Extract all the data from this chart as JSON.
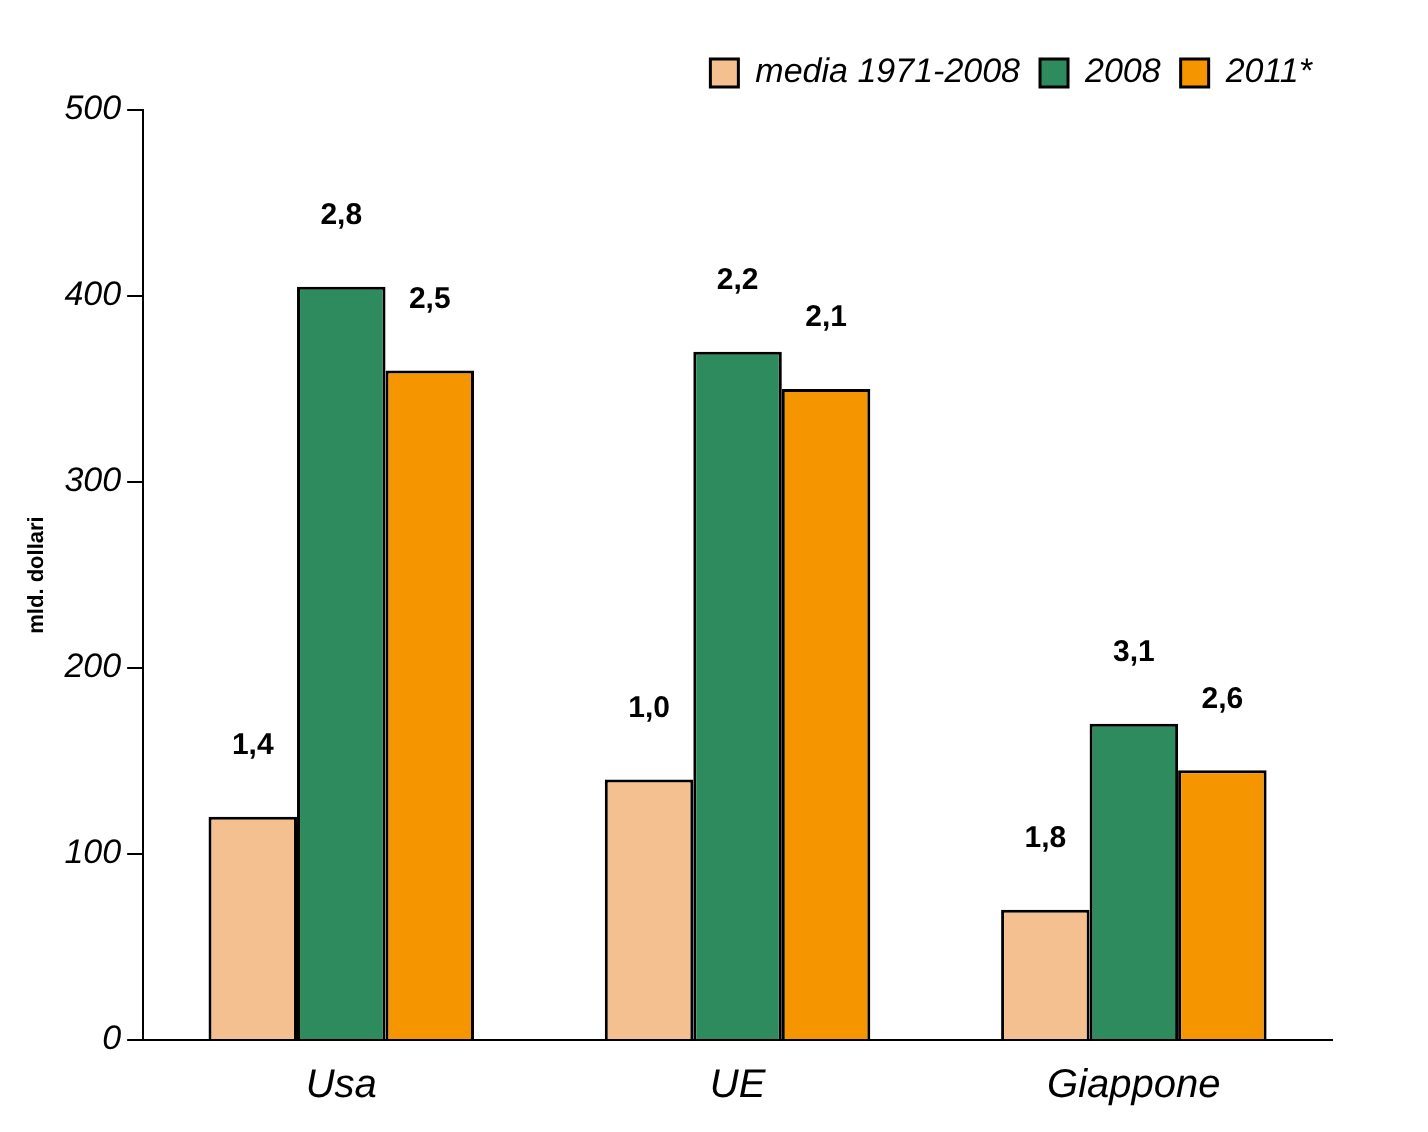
{
  "chart_data": {
    "type": "bar",
    "ylabel": "mld. dollari",
    "categories": [
      "Usa",
      "UE",
      "Giappone"
    ],
    "series": [
      {
        "name": "media 1971-2008",
        "color": "#f5c08f",
        "values": [
          120,
          140,
          70
        ]
      },
      {
        "name": "2008",
        "color": "#2e8b5e",
        "values": [
          405,
          370,
          170
        ]
      },
      {
        "name": "2011*",
        "color": "#f59500",
        "values": [
          360,
          350,
          145
        ]
      }
    ],
    "annotations": [
      "1,4",
      "2,8",
      "2,5",
      "1,0",
      "2,2",
      "2,1",
      "1,8",
      "3,1",
      "2,6"
    ],
    "ylim": [
      0,
      500
    ],
    "yticks": [
      0,
      100,
      200,
      300,
      400,
      500
    ],
    "grid": false,
    "legend": "top right"
  }
}
